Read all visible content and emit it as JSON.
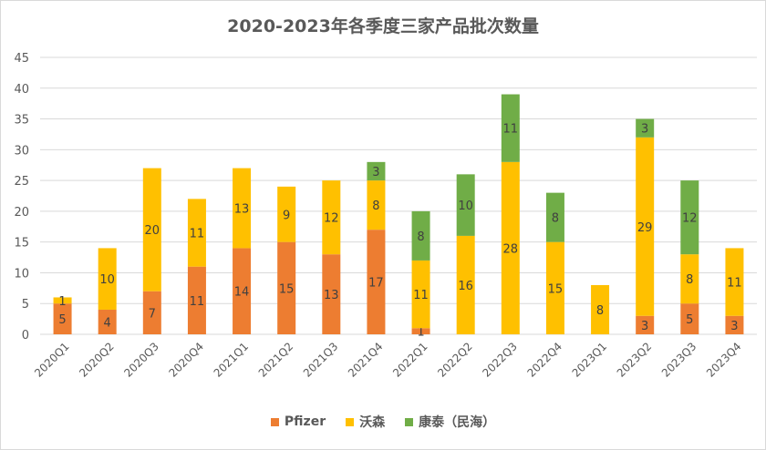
{
  "chart_data": {
    "type": "bar",
    "stacked": true,
    "title": "2020-2023年各季度三家产品批次数量",
    "xlabel": "",
    "ylabel": "",
    "ylim": [
      0,
      45
    ],
    "yticks": [
      0,
      5,
      10,
      15,
      20,
      25,
      30,
      35,
      40,
      45
    ],
    "grid": true,
    "legend_position": "bottom",
    "categories": [
      "2020Q1",
      "2020Q2",
      "2020Q3",
      "2020Q4",
      "2021Q1",
      "2021Q2",
      "2021Q3",
      "2021Q4",
      "2022Q1",
      "2022Q2",
      "2022Q3",
      "2022Q4",
      "2023Q1",
      "2023Q2",
      "2023Q3",
      "2023Q4"
    ],
    "series": [
      {
        "name": "Pfizer",
        "color": "#ED7D31",
        "values": [
          5,
          4,
          7,
          11,
          14,
          15,
          13,
          17,
          1,
          null,
          null,
          null,
          null,
          3,
          5,
          3
        ]
      },
      {
        "name": "沃森",
        "color": "#FFC000",
        "values": [
          1,
          10,
          20,
          11,
          13,
          9,
          12,
          8,
          11,
          16,
          28,
          15,
          8,
          29,
          8,
          11
        ]
      },
      {
        "name": "康泰（民海）",
        "color": "#70AD47",
        "values": [
          null,
          null,
          null,
          null,
          null,
          null,
          null,
          3,
          8,
          10,
          11,
          8,
          null,
          3,
          12,
          null
        ]
      }
    ]
  }
}
